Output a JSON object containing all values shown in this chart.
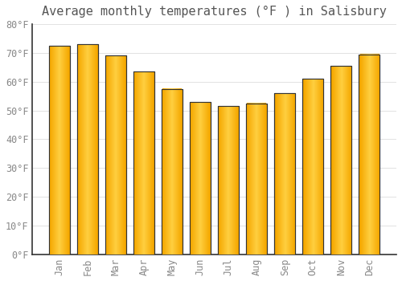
{
  "title": "Average monthly temperatures (°F ) in Salisbury",
  "months": [
    "Jan",
    "Feb",
    "Mar",
    "Apr",
    "May",
    "Jun",
    "Jul",
    "Aug",
    "Sep",
    "Oct",
    "Nov",
    "Dec"
  ],
  "values": [
    72.5,
    73.0,
    69.0,
    63.5,
    57.5,
    53.0,
    51.5,
    52.5,
    56.0,
    61.0,
    65.5,
    69.5
  ],
  "bar_color_left": "#F5A800",
  "bar_color_center": "#FFCF40",
  "bar_color_right": "#F5A800",
  "bar_edge_color": "#333333",
  "background_color": "#ffffff",
  "grid_color": "#dddddd",
  "text_color": "#888888",
  "title_color": "#555555",
  "spine_color": "#333333",
  "ylim": [
    0,
    80
  ],
  "yticks": [
    0,
    10,
    20,
    30,
    40,
    50,
    60,
    70,
    80
  ],
  "ytick_labels": [
    "0°F",
    "10°F",
    "20°F",
    "30°F",
    "40°F",
    "50°F",
    "60°F",
    "70°F",
    "80°F"
  ],
  "title_fontsize": 11,
  "tick_fontsize": 8.5,
  "xlabel_rotation": 90,
  "bar_width": 0.75
}
